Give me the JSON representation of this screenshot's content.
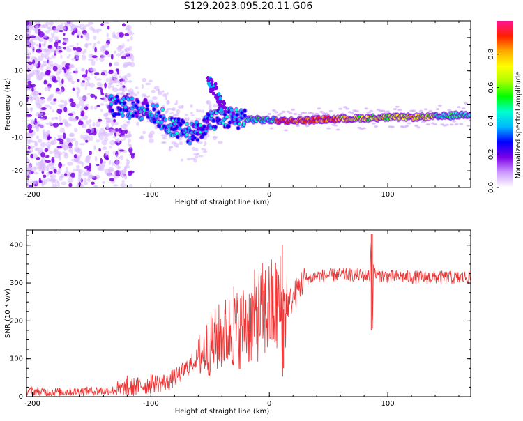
{
  "figure": {
    "title": "S129.2023.095.20.11.G06"
  },
  "colorbar": {
    "label": "Normalized spectral amplitude",
    "ticks": [
      "0.0",
      "0.2",
      "0.4",
      "0.6",
      "0.8"
    ],
    "stops": [
      "#ffffff",
      "#cc99ff",
      "#7a00e6",
      "#0000ff",
      "#00b7ff",
      "#00ffd0",
      "#00ff00",
      "#aaff00",
      "#ffff00",
      "#ffaa00",
      "#ff2000",
      "#ff1493"
    ],
    "range": [
      0,
      1
    ]
  },
  "chart_data": [
    {
      "type": "heatmap",
      "title": "",
      "xlabel": "Height of straight line (km)",
      "ylabel": "Frequency (Hz)",
      "xlim": [
        -205,
        170
      ],
      "ylim": [
        -25,
        25
      ],
      "xticks": [
        -200,
        -100,
        0,
        100
      ],
      "yticks": [
        -20,
        -10,
        0,
        10,
        20
      ],
      "ridge": {
        "description_points": [
          [
            -130,
            -0.5
          ],
          [
            -100,
            -2
          ],
          [
            -80,
            -7
          ],
          [
            -65,
            -9
          ],
          [
            -50,
            -5
          ],
          [
            -30,
            -4
          ],
          [
            -20,
            -4.5
          ],
          [
            0,
            -4.8
          ],
          [
            20,
            -5
          ],
          [
            50,
            -4.5
          ],
          [
            100,
            -4
          ],
          [
            140,
            -3.8
          ],
          [
            170,
            -3
          ]
        ],
        "peak_amplitude_range_km": [
          10,
          60
        ]
      }
    },
    {
      "type": "line",
      "title": "",
      "xlabel": "Height of straight line (km)",
      "ylabel": "SNR (10 * v/v)",
      "xlim": [
        -205,
        170
      ],
      "ylim": [
        0,
        440
      ],
      "xticks": [
        -200,
        -100,
        0,
        100
      ],
      "yticks": [
        0,
        100,
        200,
        300,
        400
      ],
      "color": "#ee3333",
      "series": [
        {
          "x": [
            -205,
            -180,
            -160,
            -140,
            -125,
            -115,
            -105,
            -95,
            -85,
            -75,
            -65,
            -55,
            -45,
            -35,
            -25,
            -15,
            -10,
            -5,
            0,
            5,
            8,
            10,
            11,
            12,
            15,
            20,
            25,
            30,
            40,
            50,
            60,
            70,
            80,
            85,
            86,
            87,
            88,
            90,
            100,
            120,
            140,
            160,
            170
          ],
          "values": [
            15,
            12,
            14,
            15,
            18,
            25,
            30,
            35,
            40,
            60,
            90,
            120,
            150,
            170,
            180,
            200,
            220,
            225,
            230,
            235,
            240,
            245,
            80,
            230,
            240,
            260,
            290,
            310,
            318,
            320,
            322,
            322,
            320,
            318,
            430,
            180,
            340,
            320,
            318,
            315,
            315,
            314,
            315
          ]
        }
      ],
      "spikes": [
        [
          -120,
          55
        ],
        [
          -100,
          60
        ],
        [
          -30,
          290
        ],
        [
          -5,
          280
        ],
        [
          7,
          330
        ],
        [
          11,
          400
        ],
        [
          12,
          75
        ],
        [
          87,
          430
        ],
        [
          86,
          175
        ]
      ]
    }
  ]
}
